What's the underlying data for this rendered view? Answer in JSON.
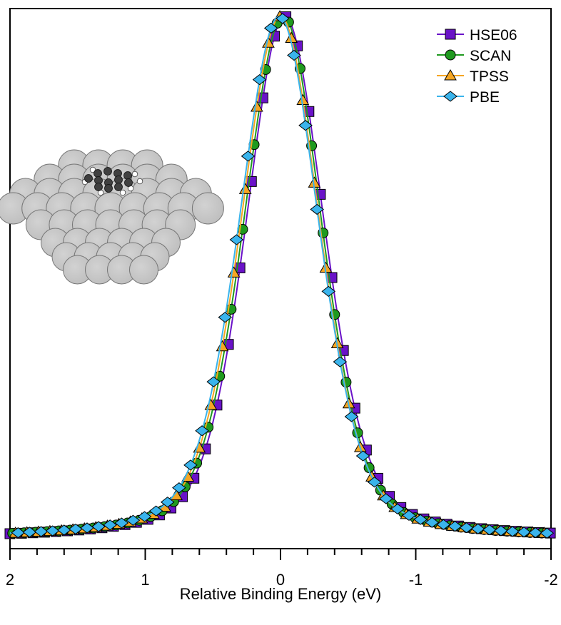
{
  "chart_data": {
    "type": "line",
    "title": "",
    "xlabel": "Relative Binding Energy (eV)",
    "ylabel": "",
    "xlim": [
      2,
      -2
    ],
    "ylim": [
      0,
      1
    ],
    "x_reversed": true,
    "x_ticks": [
      {
        "value": 2,
        "label": "2"
      },
      {
        "value": 1,
        "label": "1"
      },
      {
        "value": 0,
        "label": "0"
      },
      {
        "value": -1,
        "label": "-1"
      },
      {
        "value": -2,
        "label": "-2"
      }
    ],
    "grid": false,
    "legend": "top-right",
    "peak_shape": "asymmetric pseudo-Voigt centred near 0 eV",
    "series": [
      {
        "name": "HSE06",
        "color": "#6a12c8",
        "marker": "square",
        "center": -0.03,
        "fwhm_left": 0.68,
        "fwhm_right": 0.7
      },
      {
        "name": "SCAN",
        "color": "#1f9a1f",
        "marker": "circle",
        "center": -0.02,
        "fwhm_left": 0.7,
        "fwhm_right": 0.68
      },
      {
        "name": "TPSS",
        "color": "#f5a623",
        "marker": "triangle",
        "center": 0.0,
        "fwhm_left": 0.7,
        "fwhm_right": 0.69
      },
      {
        "name": "PBE",
        "color": "#3ab4ec",
        "marker": "diamond",
        "center": 0.01,
        "fwhm_left": 0.71,
        "fwhm_right": 0.7
      }
    ],
    "inset": {
      "description_icon": "benzene-on-metal-surface-icon"
    }
  }
}
